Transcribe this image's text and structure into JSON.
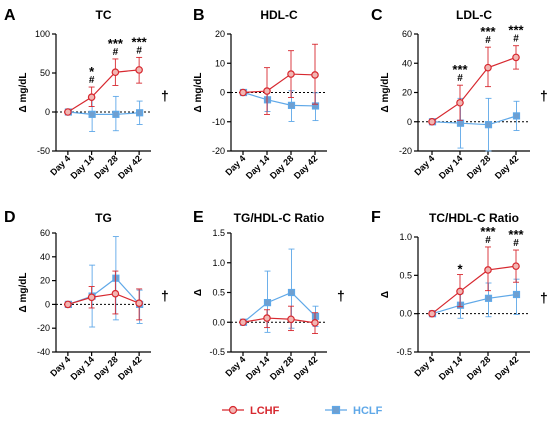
{
  "colors": {
    "lchf": "#d7282f",
    "hclf": "#5fa8e8",
    "lchf_fill": "#f2b6b3",
    "hclf_fill": "#6f9fd0",
    "axis": "#000000"
  },
  "legend": [
    {
      "name": "LCHF",
      "marker": "circle",
      "color": "#d7282f"
    },
    {
      "name": "HCLF",
      "marker": "square",
      "color": "#5fa8e8"
    }
  ],
  "chart_data": [
    {
      "type": "line",
      "panel": "A",
      "title": "TC",
      "ylabel": "Δ mg/dL",
      "categories": [
        "Day 4",
        "Day 14",
        "Day 28",
        "Day 42"
      ],
      "ylim": [
        -50,
        100
      ],
      "yticks": [
        -50,
        0,
        50,
        100
      ],
      "series": [
        {
          "name": "LCHF",
          "values": [
            0,
            19,
            51,
            54
          ],
          "err_up": [
            0,
            13,
            17,
            16
          ],
          "err_down": [
            0,
            12,
            17,
            17
          ]
        },
        {
          "name": "HCLF",
          "values": [
            0,
            -3,
            -3,
            -1
          ],
          "err_up": [
            0,
            21,
            23,
            15
          ],
          "err_down": [
            0,
            22,
            21,
            15
          ]
        }
      ],
      "annotations": [
        {
          "index": 1,
          "lines": [
            "*",
            "#"
          ]
        },
        {
          "index": 2,
          "lines": [
            "***",
            "#"
          ]
        },
        {
          "index": 3,
          "lines": [
            "***",
            "#"
          ]
        }
      ],
      "dagger": true
    },
    {
      "type": "line",
      "panel": "B",
      "title": "HDL-C",
      "ylabel": "Δ mg/dL",
      "categories": [
        "Day 4",
        "Day 14",
        "Day 28",
        "Day 42"
      ],
      "ylim": [
        -20,
        20
      ],
      "yticks": [
        -20,
        -10,
        0,
        10,
        20
      ],
      "series": [
        {
          "name": "LCHF",
          "values": [
            0,
            0.5,
            6.3,
            6
          ],
          "err_up": [
            0,
            8,
            8,
            10.5
          ],
          "err_down": [
            0,
            8,
            8,
            10
          ]
        },
        {
          "name": "HCLF",
          "values": [
            0,
            -2.5,
            -4.4,
            -4.6
          ],
          "err_up": [
            0,
            3.5,
            5,
            4.5
          ],
          "err_down": [
            0,
            4,
            5.5,
            5
          ]
        }
      ],
      "annotations": [],
      "dagger": false
    },
    {
      "type": "line",
      "panel": "C",
      "title": "LDL-C",
      "ylabel": "Δ mg/dL",
      "categories": [
        "Day 4",
        "Day 14",
        "Day 28",
        "Day 42"
      ],
      "ylim": [
        -20,
        60
      ],
      "yticks": [
        -20,
        0,
        20,
        40,
        60
      ],
      "series": [
        {
          "name": "LCHF",
          "values": [
            0,
            13,
            37,
            44
          ],
          "err_up": [
            0,
            12,
            14,
            8
          ],
          "err_down": [
            0,
            12,
            13,
            8
          ]
        },
        {
          "name": "HCLF",
          "values": [
            0,
            -1,
            -2,
            4
          ],
          "err_up": [
            0,
            17,
            18,
            10
          ],
          "err_down": [
            0,
            17,
            18,
            10
          ]
        }
      ],
      "annotations": [
        {
          "index": 1,
          "lines": [
            "***",
            "#"
          ]
        },
        {
          "index": 2,
          "lines": [
            "***",
            "#"
          ]
        },
        {
          "index": 3,
          "lines": [
            "***",
            "#"
          ]
        }
      ],
      "dagger": true
    },
    {
      "type": "line",
      "panel": "D",
      "title": "TG",
      "ylabel": "Δ mg/dL",
      "categories": [
        "Day 4",
        "Day 14",
        "Day 28",
        "Day 42"
      ],
      "ylim": [
        -40,
        60
      ],
      "yticks": [
        -40,
        -20,
        0,
        20,
        40,
        60
      ],
      "series": [
        {
          "name": "LCHF",
          "values": [
            0,
            6,
            9,
            1
          ],
          "err_up": [
            0,
            9,
            19,
            12
          ],
          "err_down": [
            0,
            9,
            17,
            14
          ]
        },
        {
          "name": "HCLF",
          "values": [
            0,
            7,
            22,
            0
          ],
          "err_up": [
            0,
            26,
            35,
            12
          ],
          "err_down": [
            0,
            26,
            35,
            16
          ]
        }
      ],
      "annotations": [],
      "dagger": true
    },
    {
      "type": "line",
      "panel": "E",
      "title": "TG/HDL-C Ratio",
      "ylabel": "Δ",
      "categories": [
        "Day 4",
        "Day 14",
        "Day 28",
        "Day 42"
      ],
      "ylim": [
        -0.5,
        1.5
      ],
      "yticks": [
        -0.5,
        0.0,
        0.5,
        1.0,
        1.5
      ],
      "series": [
        {
          "name": "LCHF",
          "values": [
            0,
            0.07,
            0.05,
            -0.01
          ],
          "err_up": [
            0,
            0.14,
            0.22,
            0.17
          ],
          "err_down": [
            0,
            0.16,
            0.19,
            0.18
          ]
        },
        {
          "name": "HCLF",
          "values": [
            0,
            0.33,
            0.5,
            0.1
          ],
          "err_up": [
            0,
            0.53,
            0.73,
            0.17
          ],
          "err_down": [
            0,
            0.5,
            0.6,
            0.17
          ]
        }
      ],
      "annotations": [],
      "dagger": true
    },
    {
      "type": "line",
      "panel": "F",
      "title": "TC/HDL-C Ratio",
      "ylabel": "Δ",
      "categories": [
        "Day 4",
        "Day 14",
        "Day 28",
        "Day 42"
      ],
      "ylim": [
        -0.5,
        1.0
      ],
      "yticks": [
        -0.5,
        0.0,
        0.5,
        1.0
      ],
      "series": [
        {
          "name": "LCHF",
          "values": [
            0,
            0.29,
            0.57,
            0.62
          ],
          "err_up": [
            0,
            0.22,
            0.3,
            0.21
          ],
          "err_down": [
            0,
            0.2,
            0.27,
            0.21
          ]
        },
        {
          "name": "HCLF",
          "values": [
            0,
            0.11,
            0.2,
            0.25
          ],
          "err_up": [
            0,
            0.15,
            0.2,
            0.2
          ],
          "err_down": [
            0,
            0.17,
            0.24,
            0.26
          ]
        }
      ],
      "annotations": [
        {
          "index": 1,
          "lines": [
            "*"
          ]
        },
        {
          "index": 2,
          "lines": [
            "***",
            "#"
          ]
        },
        {
          "index": 3,
          "lines": [
            "***",
            "#"
          ]
        }
      ],
      "dagger": true
    }
  ]
}
